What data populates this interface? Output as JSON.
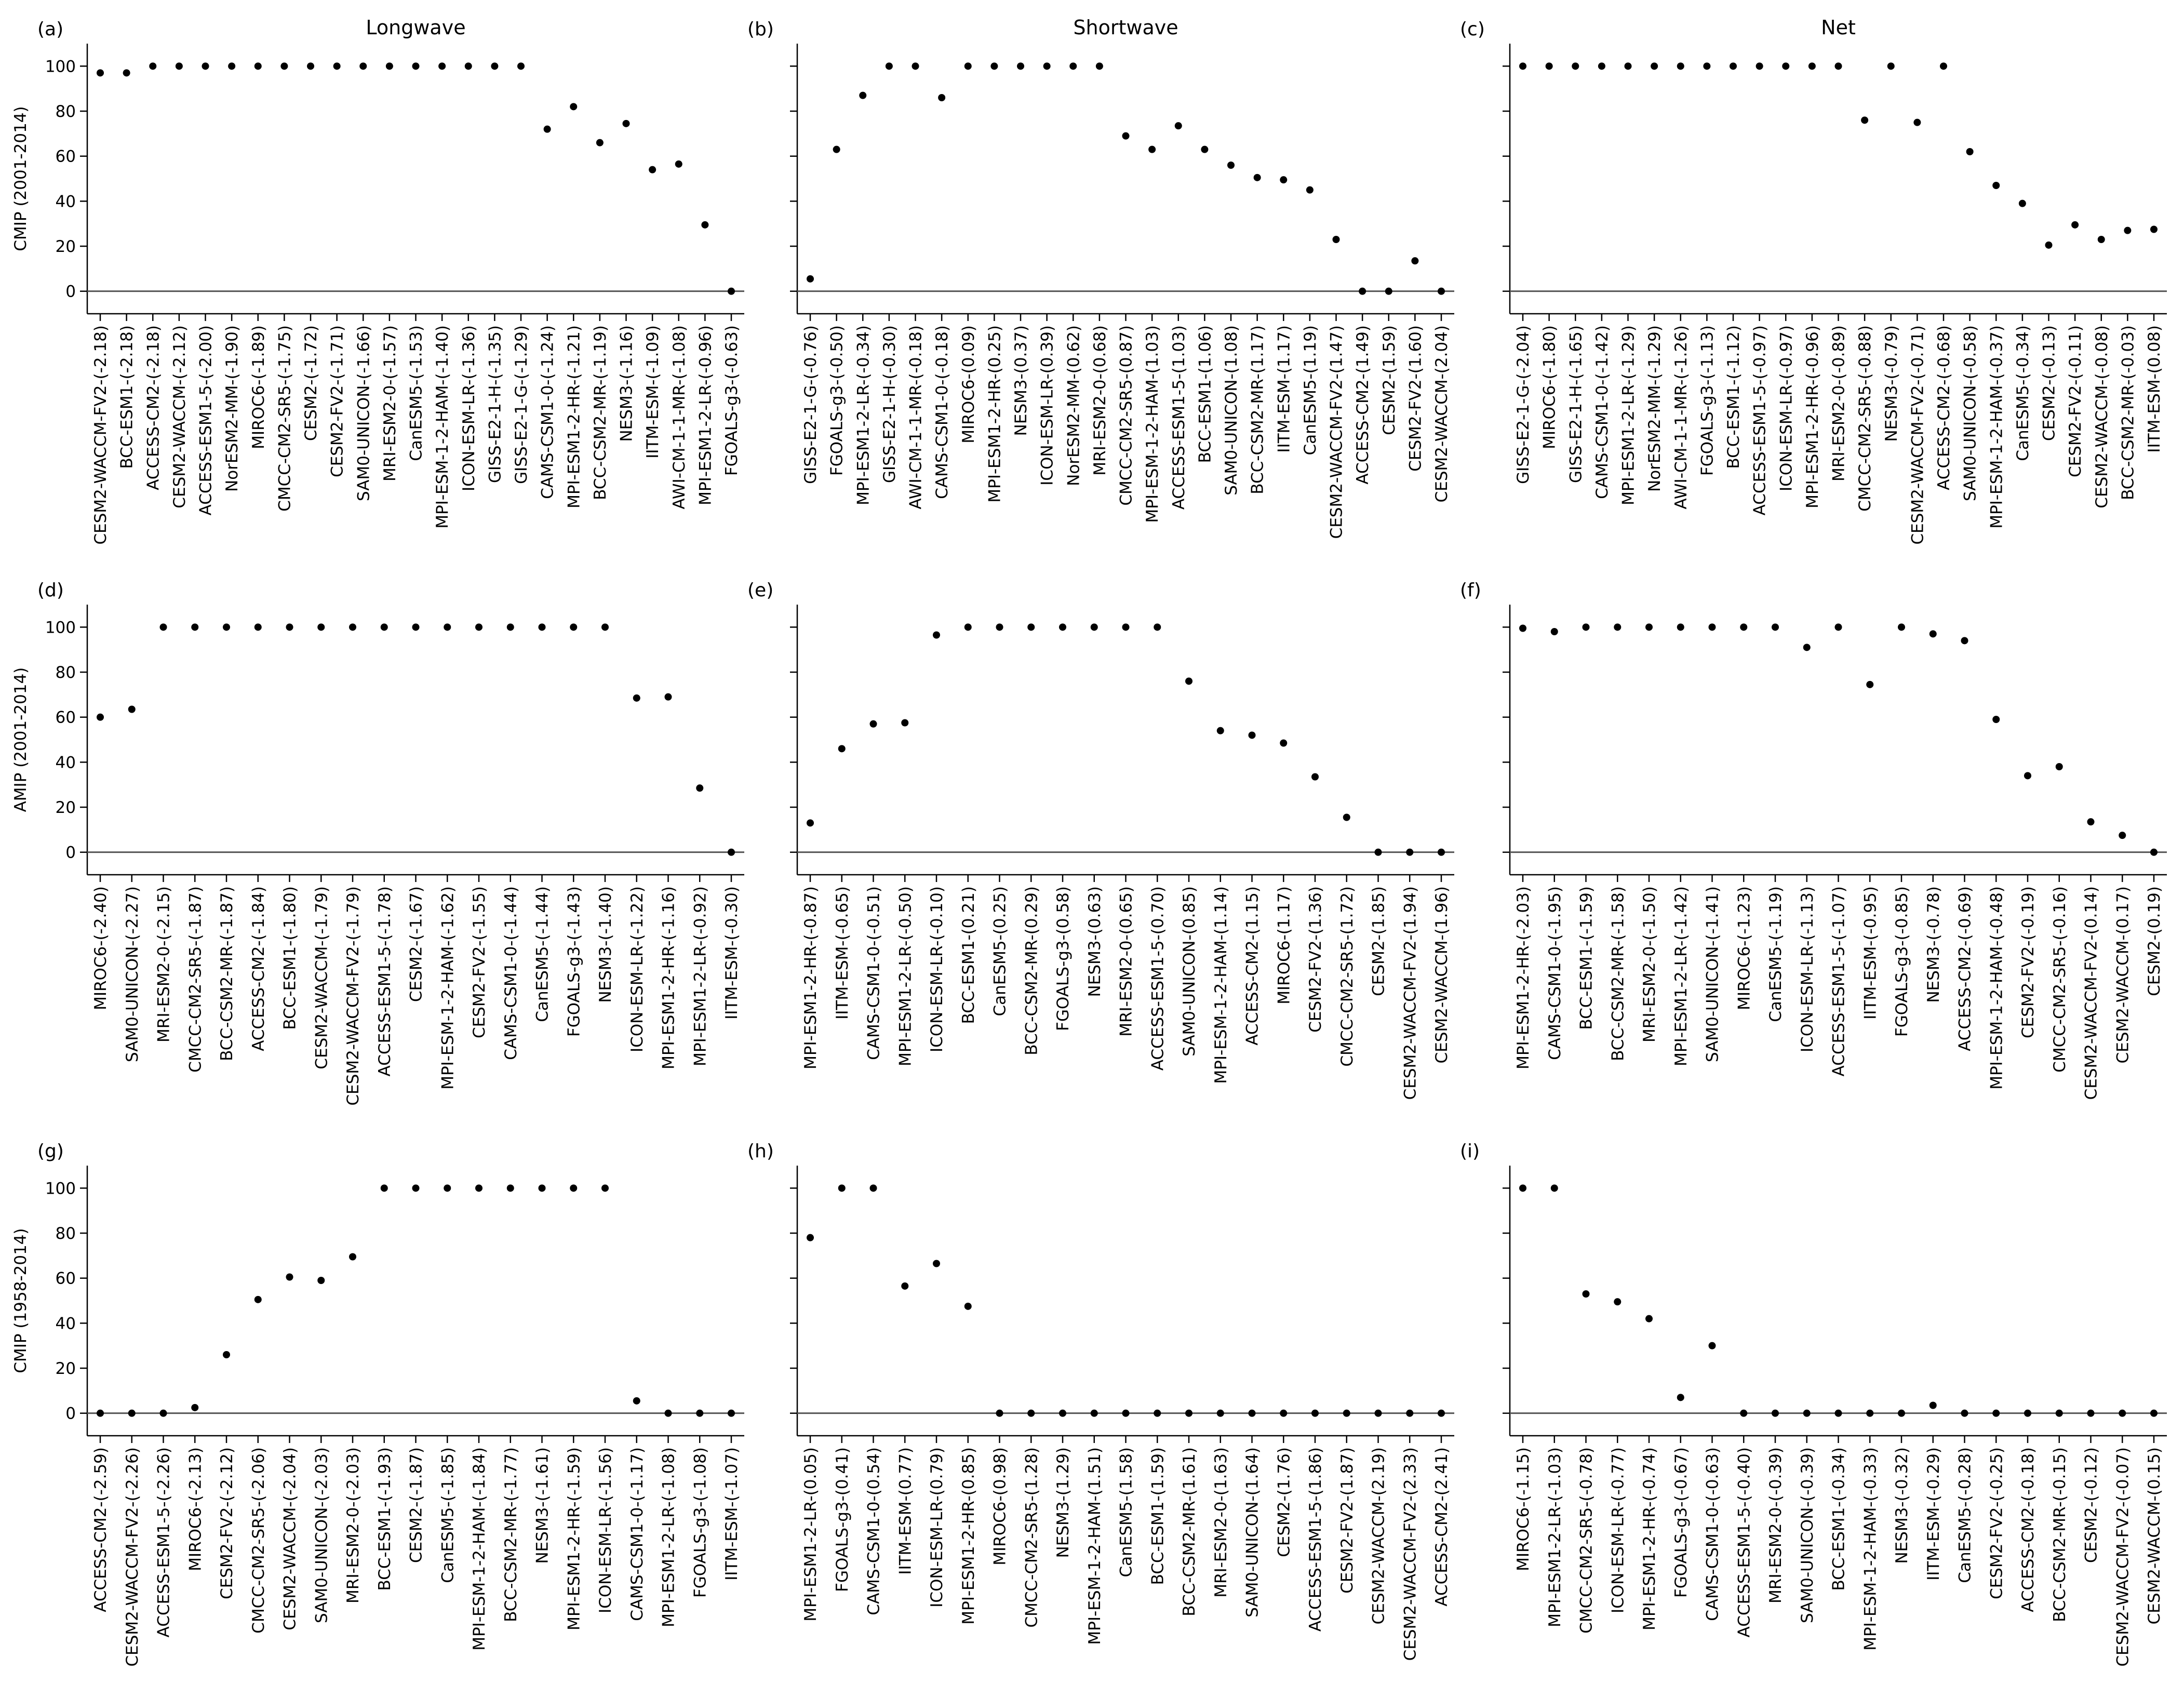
{
  "chart_data": [
    {
      "panel": "(a)",
      "title": "Longwave",
      "ylabel": "CMIP (2001-2014)",
      "type": "scatter",
      "ylim": [
        -10,
        110
      ],
      "yticks": [
        0,
        20,
        40,
        60,
        80,
        100
      ],
      "categories": [
        "CESM2-WACCM-FV2-(-2.18)",
        "BCC-ESM1-(-2.18)",
        "ACCESS-CM2-(-2.18)",
        "CESM2-WACCM-(-2.12)",
        "ACCESS-ESM1-5-(-2.00)",
        "NorESM2-MM-(-1.90)",
        "MIROC6-(-1.89)",
        "CMCC-CM2-SR5-(-1.75)",
        "CESM2-(-1.72)",
        "CESM2-FV2-(-1.71)",
        "SAM0-UNICON-(-1.66)",
        "MRI-ESM2-0-(-1.57)",
        "CanESM5-(-1.53)",
        "MPI-ESM-1-2-HAM-(-1.40)",
        "ICON-ESM-LR-(-1.36)",
        "GISS-E2-1-H-(-1.35)",
        "GISS-E2-1-G-(-1.29)",
        "CAMS-CSM1-0-(-1.24)",
        "MPI-ESM1-2-HR-(-1.21)",
        "BCC-CSM2-MR-(-1.19)",
        "NESM3-(-1.16)",
        "IITM-ESM-(-1.09)",
        "AWI-CM-1-1-MR-(-1.08)",
        "MPI-ESM1-2-LR-(-0.96)",
        "FGOALS-g3-(-0.63)"
      ],
      "values": [
        97,
        97,
        100,
        100,
        100,
        100,
        100,
        100,
        100,
        100,
        100,
        100,
        100,
        100,
        100,
        100,
        100,
        72,
        82,
        66,
        74.5,
        54,
        56.5,
        29.5,
        0
      ]
    },
    {
      "panel": "(b)",
      "title": "Shortwave",
      "ylabel": "",
      "type": "scatter",
      "ylim": [
        -10,
        110
      ],
      "yticks": [
        0,
        20,
        40,
        60,
        80,
        100
      ],
      "categories": [
        "GISS-E2-1-G-(-0.76)",
        "FGOALS-g3-(-0.50)",
        "MPI-ESM1-2-LR-(-0.34)",
        "GISS-E2-1-H-(-0.30)",
        "AWI-CM-1-1-MR-(-0.18)",
        "CAMS-CSM1-0-(-0.18)",
        "MIROC6-(0.09)",
        "MPI-ESM1-2-HR-(0.25)",
        "NESM3-(0.37)",
        "ICON-ESM-LR-(0.39)",
        "NorESM2-MM-(0.62)",
        "MRI-ESM2-0-(0.68)",
        "CMCC-CM2-SR5-(0.87)",
        "MPI-ESM-1-2-HAM-(1.03)",
        "ACCESS-ESM1-5-(1.03)",
        "BCC-ESM1-(1.06)",
        "SAM0-UNICON-(1.08)",
        "BCC-CSM2-MR-(1.17)",
        "IITM-ESM-(1.17)",
        "CanESM5-(1.19)",
        "CESM2-WACCM-FV2-(1.47)",
        "ACCESS-CM2-(1.49)",
        "CESM2-(1.59)",
        "CESM2-FV2-(1.60)",
        "CESM2-WACCM-(2.04)"
      ],
      "values": [
        5.5,
        63,
        87,
        100,
        100,
        86,
        100,
        100,
        100,
        100,
        100,
        100,
        69,
        63,
        73.5,
        63,
        56,
        50.5,
        49.5,
        45,
        23,
        0,
        0,
        13.5,
        0
      ]
    },
    {
      "panel": "(c)",
      "title": "Net",
      "ylabel": "",
      "type": "scatter",
      "ylim": [
        -10,
        110
      ],
      "yticks": [
        0,
        20,
        40,
        60,
        80,
        100
      ],
      "categories": [
        "GISS-E2-1-G-(-2.04)",
        "MIROC6-(-1.80)",
        "GISS-E2-1-H-(-1.65)",
        "CAMS-CSM1-0-(-1.42)",
        "MPI-ESM1-2-LR-(-1.29)",
        "NorESM2-MM-(-1.29)",
        "AWI-CM-1-1-MR-(-1.26)",
        "FGOALS-g3-(-1.13)",
        "BCC-ESM1-(-1.12)",
        "ACCESS-ESM1-5-(-0.97)",
        "ICON-ESM-LR-(-0.97)",
        "MPI-ESM1-2-HR-(-0.96)",
        "MRI-ESM2-0-(-0.89)",
        "CMCC-CM2-SR5-(-0.88)",
        "NESM3-(-0.79)",
        "CESM2-WACCM-FV2-(-0.71)",
        "ACCESS-CM2-(-0.68)",
        "SAM0-UNICON-(-0.58)",
        "MPI-ESM-1-2-HAM-(-0.37)",
        "CanESM5-(-0.34)",
        "CESM2-(-0.13)",
        "CESM2-FV2-(-0.11)",
        "CESM2-WACCM-(-0.08)",
        "BCC-CSM2-MR-(-0.03)",
        "IITM-ESM-(0.08)"
      ],
      "values": [
        100,
        100,
        100,
        100,
        100,
        100,
        100,
        100,
        100,
        100,
        100,
        100,
        100,
        76,
        100,
        75,
        100,
        62,
        47,
        39,
        20.5,
        29.5,
        23,
        27,
        27.5
      ]
    },
    {
      "panel": "(d)",
      "title": "",
      "ylabel": "AMIP (2001-2014)",
      "type": "scatter",
      "ylim": [
        -10,
        110
      ],
      "yticks": [
        0,
        20,
        40,
        60,
        80,
        100
      ],
      "categories": [
        "MIROC6-(-2.40)",
        "SAM0-UNICON-(-2.27)",
        "MRI-ESM2-0-(-2.15)",
        "CMCC-CM2-SR5-(-1.87)",
        "BCC-CSM2-MR-(-1.87)",
        "ACCESS-CM2-(-1.84)",
        "BCC-ESM1-(-1.80)",
        "CESM2-WACCM-(-1.79)",
        "CESM2-WACCM-FV2-(-1.79)",
        "ACCESS-ESM1-5-(-1.78)",
        "CESM2-(-1.67)",
        "MPI-ESM-1-2-HAM-(-1.62)",
        "CESM2-FV2-(-1.55)",
        "CAMS-CSM1-0-(-1.44)",
        "CanESM5-(-1.44)",
        "FGOALS-g3-(-1.43)",
        "NESM3-(-1.40)",
        "ICON-ESM-LR-(-1.22)",
        "MPI-ESM1-2-HR-(-1.16)",
        "MPI-ESM1-2-LR-(-0.92)",
        "IITM-ESM-(-0.30)"
      ],
      "values": [
        60,
        63.5,
        100,
        100,
        100,
        100,
        100,
        100,
        100,
        100,
        100,
        100,
        100,
        100,
        100,
        100,
        100,
        68.5,
        69,
        28.5,
        0
      ]
    },
    {
      "panel": "(e)",
      "title": "",
      "ylabel": "",
      "type": "scatter",
      "ylim": [
        -10,
        110
      ],
      "yticks": [
        0,
        20,
        40,
        60,
        80,
        100
      ],
      "categories": [
        "MPI-ESM1-2-HR-(-0.87)",
        "IITM-ESM-(-0.65)",
        "CAMS-CSM1-0-(-0.51)",
        "MPI-ESM1-2-LR-(-0.50)",
        "ICON-ESM-LR-(-0.10)",
        "BCC-ESM1-(0.21)",
        "CanESM5-(0.25)",
        "BCC-CSM2-MR-(0.29)",
        "FGOALS-g3-(0.58)",
        "NESM3-(0.63)",
        "MRI-ESM2-0-(0.65)",
        "ACCESS-ESM1-5-(0.70)",
        "SAM0-UNICON-(0.85)",
        "MPI-ESM-1-2-HAM-(1.14)",
        "ACCESS-CM2-(1.15)",
        "MIROC6-(1.17)",
        "CESM2-FV2-(1.36)",
        "CMCC-CM2-SR5-(1.72)",
        "CESM2-(1.85)",
        "CESM2-WACCM-FV2-(1.94)",
        "CESM2-WACCM-(1.96)"
      ],
      "values": [
        13,
        46,
        57,
        57.5,
        96.5,
        100,
        100,
        100,
        100,
        100,
        100,
        100,
        76,
        54,
        52,
        48.5,
        33.5,
        15.5,
        0,
        0,
        0
      ]
    },
    {
      "panel": "(f)",
      "title": "",
      "ylabel": "",
      "type": "scatter",
      "ylim": [
        -10,
        110
      ],
      "yticks": [
        0,
        20,
        40,
        60,
        80,
        100
      ],
      "categories": [
        "MPI-ESM1-2-HR-(-2.03)",
        "CAMS-CSM1-0-(-1.95)",
        "BCC-ESM1-(-1.59)",
        "BCC-CSM2-MR-(-1.58)",
        "MRI-ESM2-0-(-1.50)",
        "MPI-ESM1-2-LR-(-1.42)",
        "SAM0-UNICON-(-1.41)",
        "MIROC6-(-1.23)",
        "CanESM5-(-1.19)",
        "ICON-ESM-LR-(-1.13)",
        "ACCESS-ESM1-5-(-1.07)",
        "IITM-ESM-(-0.95)",
        "FGOALS-g3-(-0.85)",
        "NESM3-(-0.78)",
        "ACCESS-CM2-(-0.69)",
        "MPI-ESM-1-2-HAM-(-0.48)",
        "CESM2-FV2-(-0.19)",
        "CMCC-CM2-SR5-(-0.16)",
        "CESM2-WACCM-FV2-(0.14)",
        "CESM2-WACCM-(0.17)",
        "CESM2-(0.19)"
      ],
      "values": [
        99.5,
        98,
        100,
        100,
        100,
        100,
        100,
        100,
        100,
        91,
        100,
        74.5,
        100,
        97,
        94,
        59,
        34,
        38,
        13.5,
        7.5,
        0
      ]
    },
    {
      "panel": "(g)",
      "title": "",
      "ylabel": "CMIP (1958-2014)",
      "type": "scatter",
      "ylim": [
        -10,
        110
      ],
      "yticks": [
        0,
        20,
        40,
        60,
        80,
        100
      ],
      "categories": [
        "ACCESS-CM2-(-2.59)",
        "CESM2-WACCM-FV2-(-2.26)",
        "ACCESS-ESM1-5-(-2.26)",
        "MIROC6-(-2.13)",
        "CESM2-FV2-(-2.12)",
        "CMCC-CM2-SR5-(-2.06)",
        "CESM2-WACCM-(-2.04)",
        "SAM0-UNICON-(-2.03)",
        "MRI-ESM2-0-(-2.03)",
        "BCC-ESM1-(-1.93)",
        "CESM2-(-1.87)",
        "CanESM5-(-1.85)",
        "MPI-ESM-1-2-HAM-(-1.84)",
        "BCC-CSM2-MR-(-1.77)",
        "NESM3-(-1.61)",
        "MPI-ESM1-2-HR-(-1.59)",
        "ICON-ESM-LR-(-1.56)",
        "CAMS-CSM1-0-(-1.17)",
        "MPI-ESM1-2-LR-(-1.08)",
        "FGOALS-g3-(-1.08)",
        "IITM-ESM-(-1.07)"
      ],
      "values": [
        0,
        0,
        0,
        2.5,
        26,
        50.5,
        60.5,
        59,
        69.5,
        100,
        100,
        100,
        100,
        100,
        100,
        100,
        100,
        5.5,
        0,
        0,
        0
      ]
    },
    {
      "panel": "(h)",
      "title": "",
      "ylabel": "",
      "type": "scatter",
      "ylim": [
        -10,
        110
      ],
      "yticks": [
        0,
        20,
        40,
        60,
        80,
        100
      ],
      "categories": [
        "MPI-ESM1-2-LR-(0.05)",
        "FGOALS-g3-(0.41)",
        "CAMS-CSM1-0-(0.54)",
        "IITM-ESM-(0.77)",
        "ICON-ESM-LR-(0.79)",
        "MPI-ESM1-2-HR-(0.85)",
        "MIROC6-(0.98)",
        "CMCC-CM2-SR5-(1.28)",
        "NESM3-(1.29)",
        "MPI-ESM-1-2-HAM-(1.51)",
        "CanESM5-(1.58)",
        "BCC-ESM1-(1.59)",
        "BCC-CSM2-MR-(1.61)",
        "MRI-ESM2-0-(1.63)",
        "SAM0-UNICON-(1.64)",
        "CESM2-(1.76)",
        "ACCESS-ESM1-5-(1.86)",
        "CESM2-FV2-(1.87)",
        "CESM2-WACCM-(2.19)",
        "CESM2-WACCM-FV2-(2.33)",
        "ACCESS-CM2-(2.41)"
      ],
      "values": [
        78,
        100,
        100,
        56.5,
        66.5,
        47.5,
        0,
        0,
        0,
        0,
        0,
        0,
        0,
        0,
        0,
        0,
        0,
        0,
        0,
        0,
        0
      ]
    },
    {
      "panel": "(i)",
      "title": "",
      "ylabel": "",
      "type": "scatter",
      "ylim": [
        -10,
        110
      ],
      "yticks": [
        0,
        20,
        40,
        60,
        80,
        100
      ],
      "categories": [
        "MIROC6-(-1.15)",
        "MPI-ESM1-2-LR-(-1.03)",
        "CMCC-CM2-SR5-(-0.78)",
        "ICON-ESM-LR-(-0.77)",
        "MPI-ESM1-2-HR-(-0.74)",
        "FGOALS-g3-(-0.67)",
        "CAMS-CSM1-0-(-0.63)",
        "ACCESS-ESM1-5-(-0.40)",
        "MRI-ESM2-0-(-0.39)",
        "SAM0-UNICON-(-0.39)",
        "BCC-ESM1-(-0.34)",
        "MPI-ESM-1-2-HAM-(-0.33)",
        "NESM3-(-0.32)",
        "IITM-ESM-(-0.29)",
        "CanESM5-(-0.28)",
        "CESM2-FV2-(-0.25)",
        "ACCESS-CM2-(-0.18)",
        "BCC-CSM2-MR-(-0.15)",
        "CESM2-(-0.12)",
        "CESM2-WACCM-FV2-(-0.07)",
        "CESM2-WACCM-(0.15)"
      ],
      "values": [
        100,
        100,
        53,
        49.5,
        42,
        7,
        30,
        0,
        0,
        0,
        0,
        0,
        0,
        3.5,
        0,
        0,
        0,
        0,
        0,
        0,
        0
      ]
    }
  ]
}
